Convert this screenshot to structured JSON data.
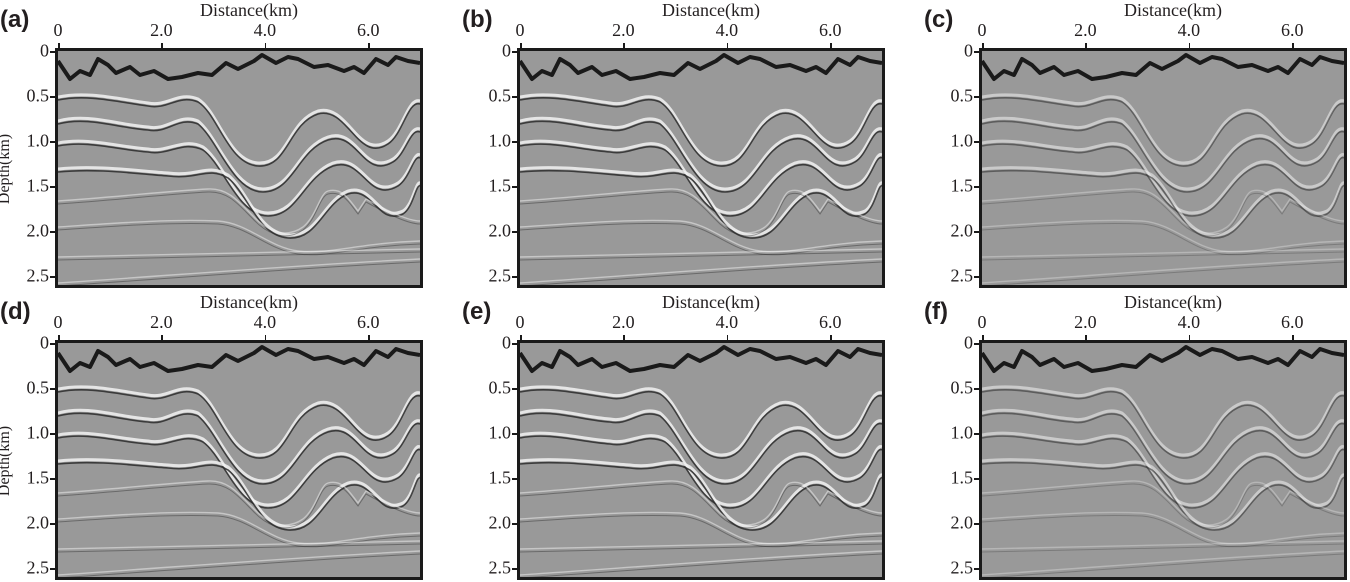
{
  "figure": {
    "x_axis_title": "Distance(km)",
    "y_axis_title": "Depth(km)",
    "x_ticks": [
      "0",
      "2.0",
      "4.0",
      "6.0"
    ],
    "y_ticks": [
      "0",
      "0.5",
      "1.0",
      "1.5",
      "2.0",
      "2.5"
    ],
    "x_tick_values": [
      0,
      2,
      4,
      6
    ],
    "y_tick_values": [
      0,
      0.5,
      1.0,
      1.5,
      2.0,
      2.5
    ],
    "x_range_km": [
      0,
      7.0
    ],
    "y_range_km": [
      0,
      2.6
    ],
    "background_color": "#999999",
    "reflector_color": "#1a1a1a",
    "panels": [
      {
        "label": "(a)",
        "show_y_title": true
      },
      {
        "label": "(b)",
        "show_y_title": false
      },
      {
        "label": "(c)",
        "show_y_title": false
      },
      {
        "label": "(d)",
        "show_y_title": true
      },
      {
        "label": "(e)",
        "show_y_title": false
      },
      {
        "label": "(f)",
        "show_y_title": false
      }
    ]
  }
}
